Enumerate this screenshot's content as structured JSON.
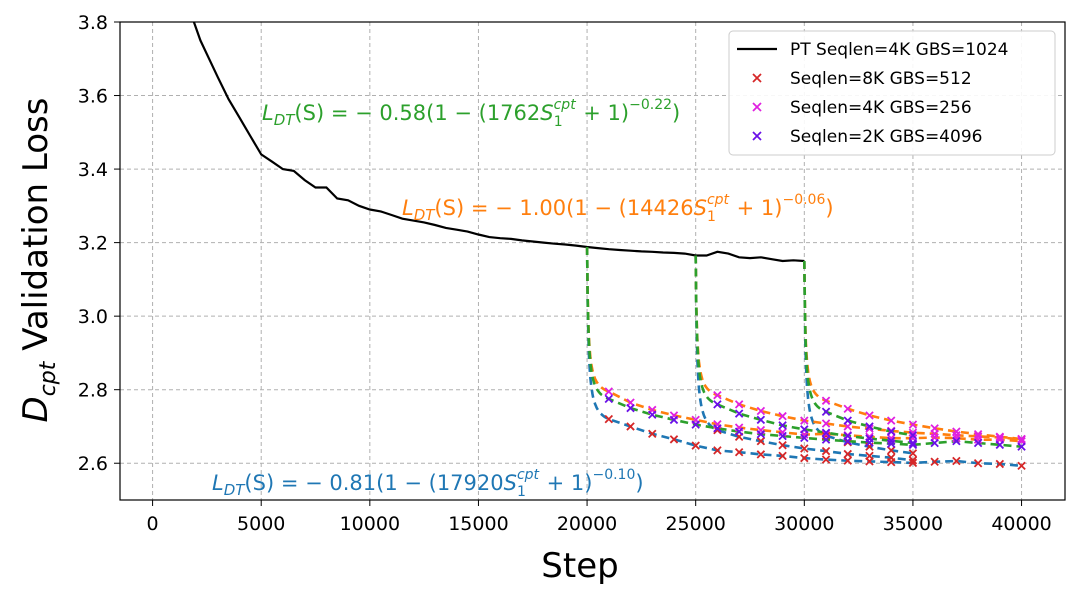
{
  "chart_data": {
    "type": "line",
    "xlabel": "Step",
    "ylabel_main": "D",
    "ylabel_sub": "cpt",
    "ylabel_rest": " Validation Loss",
    "xlim": [
      -1500,
      42000
    ],
    "ylim": [
      2.5,
      3.8
    ],
    "xticks": [
      0,
      5000,
      10000,
      15000,
      20000,
      25000,
      30000,
      35000,
      40000
    ],
    "yticks": [
      2.6,
      2.8,
      3.0,
      3.2,
      3.4,
      3.6,
      3.8
    ],
    "grid": true,
    "legend_position": "top-right",
    "pretrain": {
      "name": "PT Seqlen=4K GBS=1024",
      "color": "#000000",
      "x": [
        1900,
        2200,
        2600,
        3000,
        3500,
        4000,
        4500,
        5000,
        5500,
        6000,
        6500,
        7000,
        7500,
        8000,
        8500,
        9000,
        9500,
        10000,
        10500,
        11000,
        11500,
        12000,
        12500,
        13000,
        13500,
        14000,
        14500,
        15000,
        15500,
        16000,
        16500,
        17000,
        17500,
        18000,
        18500,
        19000,
        19500,
        20000,
        20500,
        21000,
        21500,
        22000,
        22500,
        23000,
        23500,
        24000,
        24500,
        25000,
        25500,
        26000,
        26500,
        27000,
        27500,
        28000,
        28500,
        29000,
        29500,
        30000
      ],
      "y": [
        3.8,
        3.75,
        3.7,
        3.65,
        3.59,
        3.54,
        3.49,
        3.44,
        3.42,
        3.4,
        3.395,
        3.37,
        3.35,
        3.35,
        3.32,
        3.315,
        3.3,
        3.29,
        3.285,
        3.275,
        3.265,
        3.26,
        3.255,
        3.248,
        3.24,
        3.235,
        3.23,
        3.222,
        3.215,
        3.212,
        3.21,
        3.206,
        3.203,
        3.2,
        3.197,
        3.195,
        3.192,
        3.188,
        3.185,
        3.182,
        3.18,
        3.178,
        3.176,
        3.175,
        3.173,
        3.172,
        3.17,
        3.165,
        3.165,
        3.175,
        3.17,
        3.16,
        3.158,
        3.16,
        3.155,
        3.15,
        3.152,
        3.15
      ]
    },
    "fits": [
      {
        "label_coef": "0.58",
        "label_mult": "1762",
        "label_exp": "0.22",
        "color": "#2ca02c",
        "A": 0.58,
        "B": 1762,
        "alpha": 0.22
      },
      {
        "label_coef": "1.00",
        "label_mult": "14426",
        "label_exp": "0.06",
        "color": "#ff7f0e",
        "A": 1.0,
        "B": 14426,
        "alpha": 0.06
      },
      {
        "label_coef": "0.81",
        "label_mult": "17920",
        "label_exp": "0.10",
        "color": "#1f77b4",
        "A": 0.81,
        "B": 17920,
        "alpha": 0.1
      }
    ],
    "formula_parts": {
      "lhs": "L",
      "lhs_sub": "DT",
      "arg": "(S) = ",
      "minus": "− ",
      "open": "(1 − (",
      "s": "S",
      "s_sub": "1",
      "s_sup": "cpt",
      "plus": " + 1)",
      "exp_prefix": "−",
      "close": ")"
    },
    "series": [
      {
        "name": "Seqlen=8K GBS=512",
        "color": "#d62728",
        "marker": "x",
        "branches": [
          {
            "start": 20000,
            "x": [
              21000,
              22000,
              23000,
              24000,
              25000,
              26000,
              27000,
              28000,
              29000,
              30000,
              31000,
              32000,
              33000,
              34000,
              35000,
              36000,
              37000,
              38000,
              39000,
              40000
            ],
            "y": [
              2.72,
              2.7,
              2.68,
              2.665,
              2.648,
              2.635,
              2.63,
              2.624,
              2.62,
              2.614,
              2.61,
              2.607,
              2.605,
              2.603,
              2.601,
              2.604,
              2.606,
              2.6,
              2.598,
              2.593
            ]
          },
          {
            "start": 25000,
            "x": [
              26000,
              27000,
              28000,
              29000,
              30000,
              31000,
              32000,
              33000,
              34000,
              35000
            ],
            "y": [
              2.69,
              2.672,
              2.66,
              2.649,
              2.64,
              2.633,
              2.625,
              2.62,
              2.615,
              2.608
            ]
          },
          {
            "start": 30000,
            "x": [
              31000,
              32000,
              33000,
              34000,
              35000
            ],
            "y": [
              2.675,
              2.657,
              2.645,
              2.635,
              2.627
            ]
          }
        ]
      },
      {
        "name": "Seqlen=4K GBS=256",
        "color": "#e020e0",
        "marker": "x",
        "branches": [
          {
            "start": 20000,
            "x": [
              21000,
              22000,
              23000,
              24000,
              25000,
              26000,
              27000,
              28000,
              29000,
              30000,
              31000,
              32000,
              33000,
              34000,
              35000,
              36000,
              37000,
              38000,
              39000,
              40000
            ],
            "y": [
              2.795,
              2.765,
              2.745,
              2.73,
              2.718,
              2.706,
              2.697,
              2.69,
              2.684,
              2.678,
              2.68,
              2.676,
              2.672,
              2.668,
              2.668,
              2.67,
              2.668,
              2.664,
              2.664,
              2.66
            ]
          },
          {
            "start": 25000,
            "x": [
              26000,
              27000,
              28000,
              29000,
              30000,
              31000,
              32000,
              33000,
              34000,
              35000,
              36000,
              37000,
              38000,
              39000,
              40000
            ],
            "y": [
              2.785,
              2.76,
              2.742,
              2.728,
              2.716,
              2.708,
              2.7,
              2.694,
              2.688,
              2.683,
              2.68,
              2.676,
              2.673,
              2.67,
              2.665
            ]
          },
          {
            "start": 30000,
            "x": [
              31000,
              32000,
              33000,
              34000,
              35000,
              36000,
              37000,
              38000,
              39000,
              40000
            ],
            "y": [
              2.77,
              2.748,
              2.73,
              2.716,
              2.705,
              2.695,
              2.686,
              2.679,
              2.672,
              2.666
            ]
          }
        ]
      },
      {
        "name": "Seqlen=2K GBS=4096",
        "color": "#6a10e8",
        "marker": "x",
        "branches": [
          {
            "start": 20000,
            "x": [
              21000,
              22000,
              23000,
              24000,
              25000,
              26000,
              27000,
              28000,
              29000,
              30000,
              31000,
              32000,
              33000,
              34000,
              35000,
              36000,
              37000,
              38000,
              39000,
              40000
            ],
            "y": [
              2.775,
              2.75,
              2.732,
              2.718,
              2.705,
              2.695,
              2.686,
              2.679,
              2.674,
              2.669,
              2.664,
              2.66,
              2.656,
              2.653,
              2.65,
              2.655,
              2.66,
              2.655,
              2.65,
              2.645
            ]
          },
          {
            "start": 25000,
            "x": [
              26000,
              27000,
              28000,
              29000,
              30000,
              31000,
              32000,
              33000,
              34000,
              35000
            ],
            "y": [
              2.76,
              2.735,
              2.718,
              2.703,
              2.692,
              2.683,
              2.674,
              2.667,
              2.661,
              2.655
            ]
          },
          {
            "start": 30000,
            "x": [
              31000,
              32000,
              33000,
              34000,
              35000
            ],
            "y": [
              2.74,
              2.716,
              2.7,
              2.686,
              2.676
            ]
          }
        ]
      }
    ]
  }
}
